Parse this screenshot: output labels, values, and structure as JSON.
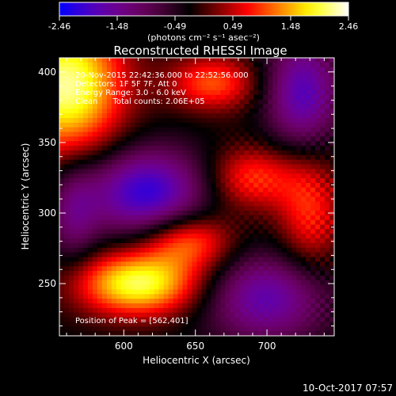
{
  "colorbar": {
    "tick_labels": [
      "-2.46",
      "-1.48",
      "-0.49",
      "0.49",
      "1.48",
      "2.46"
    ],
    "unit_label": "(photons cm⁻² s⁻¹ asec⁻²)",
    "range": [
      -2.46,
      2.46
    ],
    "colormap": [
      "#0000ff",
      "#000000",
      "#ff0000",
      "#ffff00",
      "#ffffff"
    ]
  },
  "chart_data": {
    "type": "heatmap",
    "title": "Reconstructed RHESSI Image",
    "xlabel": "Heliocentric X (arcsec)",
    "ylabel": "Heliocentric Y (arcsec)",
    "xlim": [
      555,
      747
    ],
    "ylim": [
      213,
      410
    ],
    "xticks": [
      600,
      650,
      700
    ],
    "yticks": [
      250,
      300,
      350,
      400
    ],
    "annotations": [
      "20-Nov-2015 22:42:36.000 to 22:52:56.000",
      "Detectors: 1F 5F 7F, Att 0",
      "Energy Range: 3.0 - 6.0 keV",
      "Clean      Total counts: 2.06E+05"
    ],
    "peak_label": "Position of Peak = [562,401]",
    "peak_position": [
      562,
      401
    ],
    "blobs": [
      {
        "x": 560,
        "y": 390,
        "amp": 2.46,
        "sx": 28,
        "sy": 35
      },
      {
        "x": 610,
        "y": 250,
        "amp": 2.3,
        "sx": 30,
        "sy": 16
      },
      {
        "x": 645,
        "y": 280,
        "amp": 1.4,
        "sx": 22,
        "sy": 14
      },
      {
        "x": 690,
        "y": 325,
        "amp": 1.2,
        "sx": 22,
        "sy": 16
      },
      {
        "x": 730,
        "y": 300,
        "amp": 1.1,
        "sx": 16,
        "sy": 30
      },
      {
        "x": 662,
        "y": 392,
        "amp": 1.3,
        "sx": 22,
        "sy": 14
      },
      {
        "x": 615,
        "y": 315,
        "amp": -1.9,
        "sx": 30,
        "sy": 22
      },
      {
        "x": 725,
        "y": 385,
        "amp": -1.6,
        "sx": 18,
        "sy": 28
      },
      {
        "x": 700,
        "y": 240,
        "amp": -1.5,
        "sx": 30,
        "sy": 22
      },
      {
        "x": 565,
        "y": 300,
        "amp": -0.9,
        "sx": 12,
        "sy": 25
      }
    ]
  },
  "footer": {
    "timestamp": "10-Oct-2017 07:57"
  }
}
